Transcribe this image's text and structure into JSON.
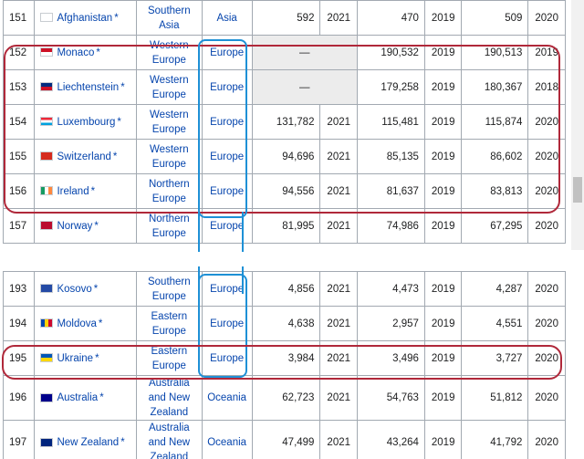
{
  "top_rows": [
    {
      "rank": "151",
      "flag": "afghanistan-flag",
      "country": "Afghanistan",
      "region": "Southern Asia",
      "continent": "Asia",
      "v1": "592",
      "y1": "2021",
      "v2": "470",
      "y2": "2019",
      "v3": "509",
      "y3": "2020"
    },
    {
      "rank": "152",
      "flag": "monaco-flag",
      "country": "Monaco",
      "region": "Western Europe",
      "continent": "Europe",
      "v1": "—",
      "y1": "",
      "v2": "190,532",
      "y2": "2019",
      "v3": "190,513",
      "y3": "2019"
    },
    {
      "rank": "153",
      "flag": "liechtenstein-flag",
      "country": "Liechtenstein",
      "region": "Western Europe",
      "continent": "Europe",
      "v1": "—",
      "y1": "",
      "v2": "179,258",
      "y2": "2019",
      "v3": "180,367",
      "y3": "2018"
    },
    {
      "rank": "154",
      "flag": "luxembourg-flag",
      "country": "Luxembourg",
      "region": "Western Europe",
      "continent": "Europe",
      "v1": "131,782",
      "y1": "2021",
      "v2": "115,481",
      "y2": "2019",
      "v3": "115,874",
      "y3": "2020"
    },
    {
      "rank": "155",
      "flag": "switzerland-flag",
      "country": "Switzerland",
      "region": "Western Europe",
      "continent": "Europe",
      "v1": "94,696",
      "y1": "2021",
      "v2": "85,135",
      "y2": "2019",
      "v3": "86,602",
      "y3": "2020"
    },
    {
      "rank": "156",
      "flag": "ireland-flag",
      "country": "Ireland",
      "region": "Northern Europe",
      "continent": "Europe",
      "v1": "94,556",
      "y1": "2021",
      "v2": "81,637",
      "y2": "2019",
      "v3": "83,813",
      "y3": "2020"
    },
    {
      "rank": "157",
      "flag": "norway-flag",
      "country": "Norway",
      "region": "Northern Europe",
      "continent": "Europe",
      "v1": "81,995",
      "y1": "2021",
      "v2": "74,986",
      "y2": "2019",
      "v3": "67,295",
      "y3": "2020"
    }
  ],
  "bottom_rows": [
    {
      "rank": "193",
      "flag": "kosovo-flag",
      "country": "Kosovo",
      "region": "Southern Europe",
      "continent": "Europe",
      "v1": "4,856",
      "y1": "2021",
      "v2": "4,473",
      "y2": "2019",
      "v3": "4,287",
      "y3": "2020"
    },
    {
      "rank": "194",
      "flag": "moldova-flag",
      "country": "Moldova",
      "region": "Eastern Europe",
      "continent": "Europe",
      "v1": "4,638",
      "y1": "2021",
      "v2": "2,957",
      "y2": "2019",
      "v3": "4,551",
      "y3": "2020"
    },
    {
      "rank": "195",
      "flag": "ukraine-flag",
      "country": "Ukraine",
      "region": "Eastern Europe",
      "continent": "Europe",
      "v1": "3,984",
      "y1": "2021",
      "v2": "3,496",
      "y2": "2019",
      "v3": "3,727",
      "y3": "2020"
    },
    {
      "rank": "196",
      "flag": "australia-flag",
      "country": "Australia",
      "region": "Australia and New Zealand",
      "continent": "Oceania",
      "v1": "62,723",
      "y1": "2021",
      "v2": "54,763",
      "y2": "2019",
      "v3": "51,812",
      "y3": "2020"
    },
    {
      "rank": "197",
      "flag": "new-zealand-flag",
      "country": "New Zealand",
      "region": "Australia and New Zealand",
      "continent": "Oceania",
      "v1": "47,499",
      "y1": "2021",
      "v2": "43,264",
      "y2": "2019",
      "v3": "41,792",
      "y3": "2020"
    }
  ],
  "ref_mark": "*",
  "colors": {
    "link": "#0645ad",
    "highlight_red": "#b0283a",
    "highlight_blue": "#1e90d6",
    "empty_cell": "#ececec"
  }
}
